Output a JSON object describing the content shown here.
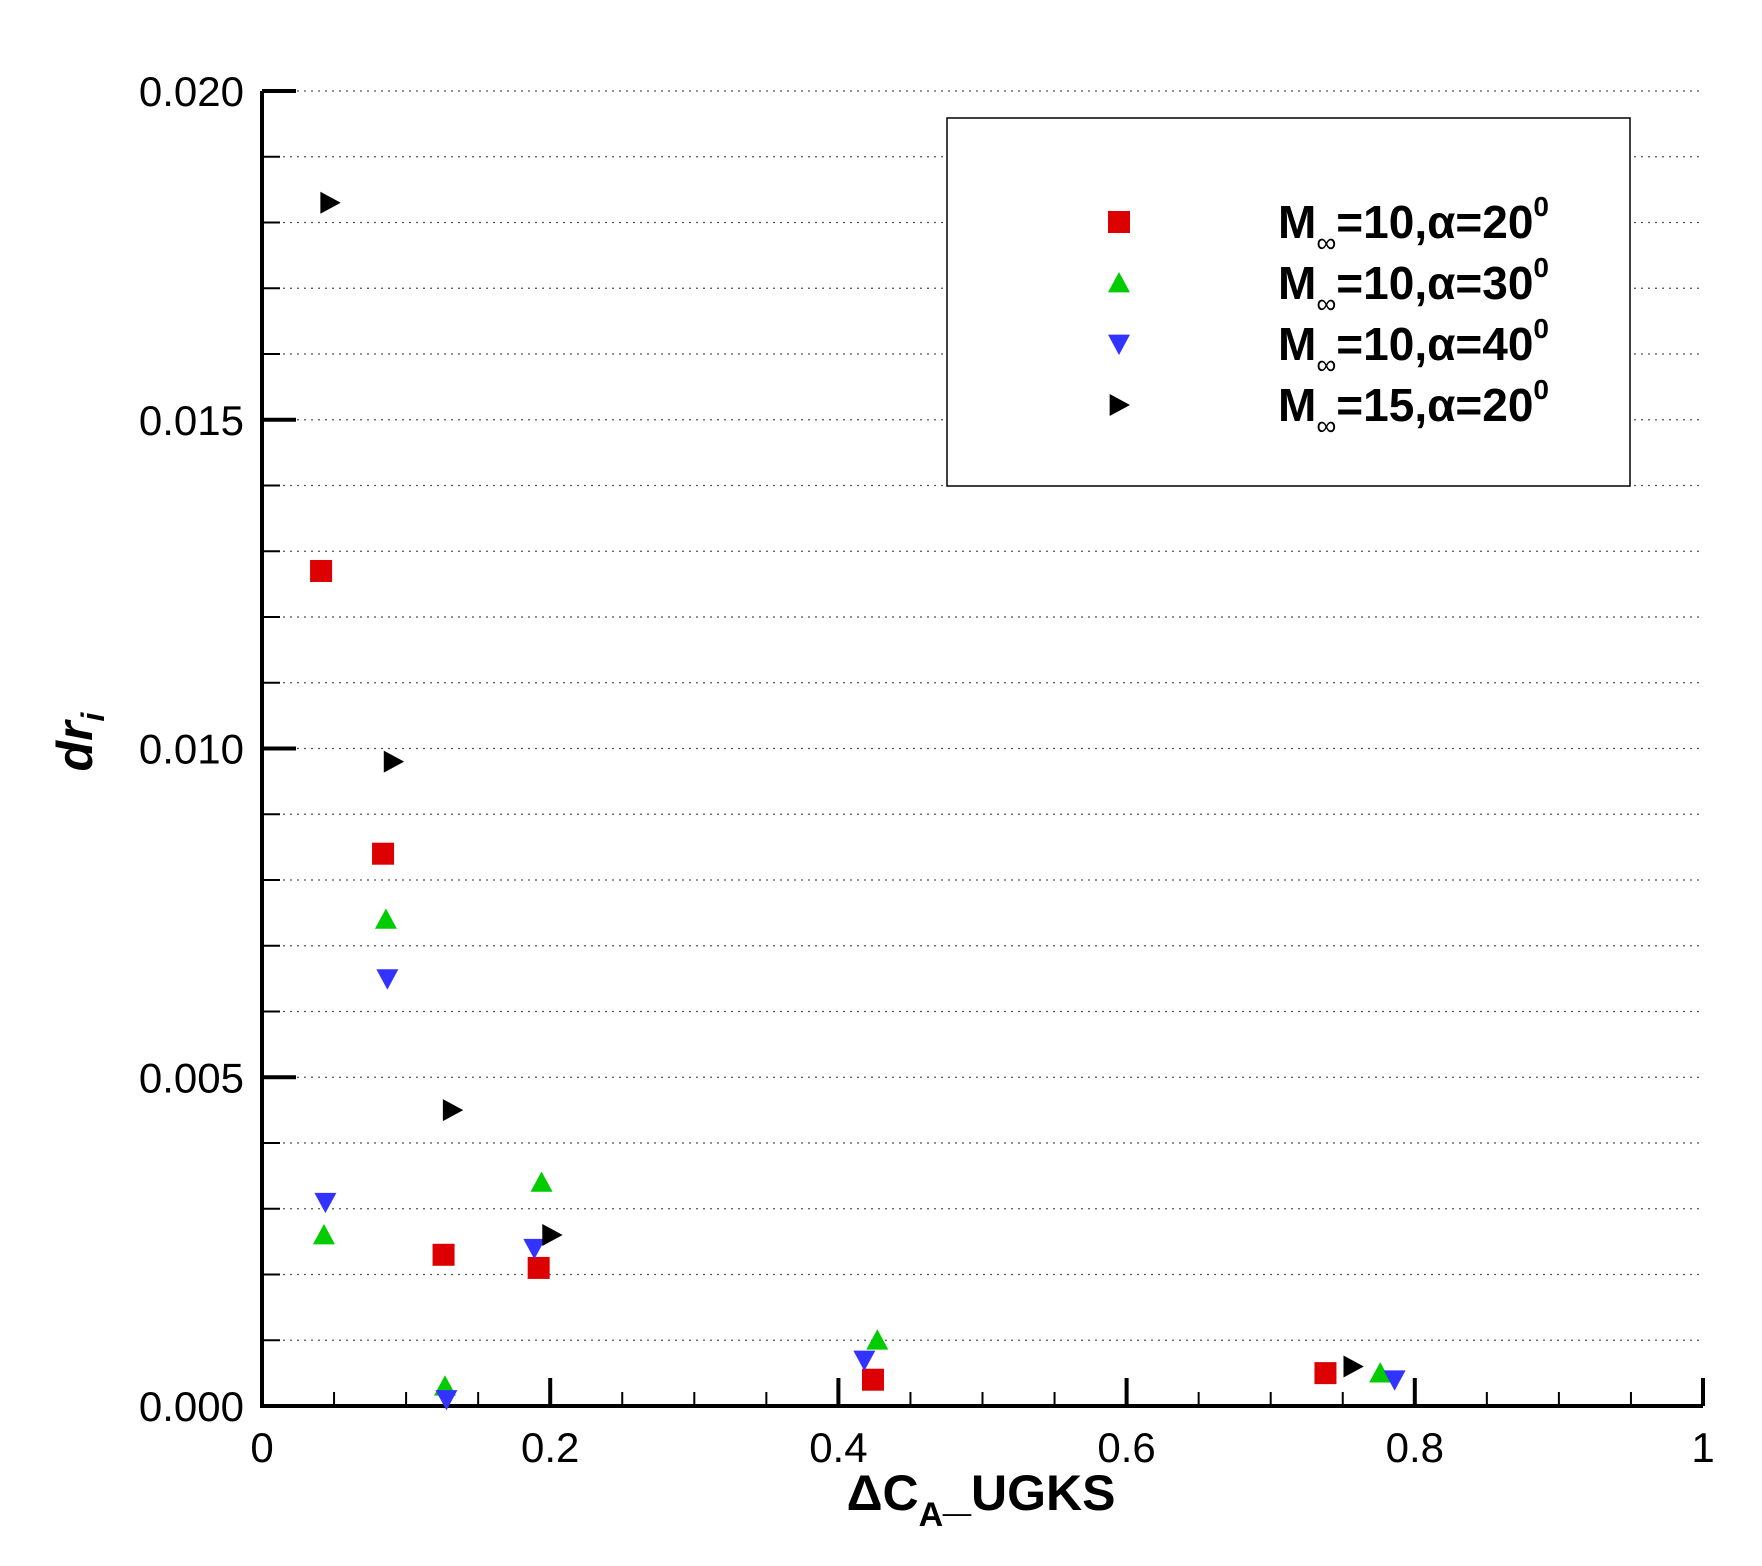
{
  "chart_data": {
    "type": "scatter",
    "title": "",
    "xlabel": {
      "main": "ΔC",
      "sub": "A",
      "rest": "_UGKS"
    },
    "ylabel": {
      "main": "dr",
      "sub": "i"
    },
    "xlim": [
      0,
      1
    ],
    "ylim": [
      0,
      0.02
    ],
    "xticks": [
      0,
      0.2,
      0.4,
      0.6,
      0.8,
      1
    ],
    "xtick_labels": [
      "0",
      "0.2",
      "0.4",
      "0.6",
      "0.8",
      "1"
    ],
    "yticks": [
      0,
      0.005,
      0.01,
      0.015,
      0.02
    ],
    "ytick_labels": [
      "0.000",
      "0.005",
      "0.010",
      "0.015",
      "0.020"
    ],
    "grid": "horizontal-dotted",
    "legend_position": "top-right",
    "series": [
      {
        "name": "M∞=10,α=20⁰",
        "label": {
          "pre": "M",
          "sub": "∞",
          "mid": "=10,α=20",
          "sup": "0"
        },
        "marker": "square",
        "color": "#dd0000",
        "points": [
          [
            0.041,
            0.0127
          ],
          [
            0.084,
            0.0084
          ],
          [
            0.126,
            0.0023
          ],
          [
            0.192,
            0.0021
          ],
          [
            0.424,
            0.0004
          ],
          [
            0.738,
            0.0005
          ]
        ]
      },
      {
        "name": "M∞=10,α=30⁰",
        "label": {
          "pre": "M",
          "sub": "∞",
          "mid": "=10,α=30",
          "sup": "0"
        },
        "marker": "triangle-up",
        "color": "#00cc00",
        "points": [
          [
            0.043,
            0.0026
          ],
          [
            0.086,
            0.0074
          ],
          [
            0.127,
            0.0003
          ],
          [
            0.194,
            0.0034
          ],
          [
            0.427,
            0.001
          ],
          [
            0.776,
            0.0005
          ]
        ]
      },
      {
        "name": "M∞=10,α=40⁰",
        "label": {
          "pre": "M",
          "sub": "∞",
          "mid": "=10,α=40",
          "sup": "0"
        },
        "marker": "triangle-down",
        "color": "#3333ff",
        "points": [
          [
            0.044,
            0.0031
          ],
          [
            0.087,
            0.0065
          ],
          [
            0.128,
            0.0001
          ],
          [
            0.189,
            0.0024
          ],
          [
            0.418,
            0.0007
          ],
          [
            0.786,
            0.0004
          ]
        ]
      },
      {
        "name": "M∞=15,α=20⁰",
        "label": {
          "pre": "M",
          "sub": "∞",
          "mid": "=15,α=20",
          "sup": "0"
        },
        "marker": "triangle-right",
        "color": "#000000",
        "points": [
          [
            0.047,
            0.0183
          ],
          [
            0.091,
            0.0098
          ],
          [
            0.132,
            0.0045
          ],
          [
            0.201,
            0.0026
          ],
          [
            0.757,
            0.0006
          ]
        ]
      }
    ]
  }
}
